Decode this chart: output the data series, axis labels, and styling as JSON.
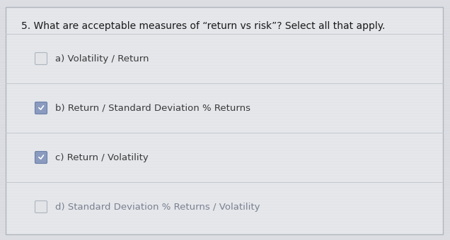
{
  "title": "5. What are acceptable measures of “return vs risk”? Select all that apply.",
  "options": [
    {
      "label": "a) Volatility / Return",
      "checked": false
    },
    {
      "label": "b) Return / Standard Deviation % Returns",
      "checked": true
    },
    {
      "label": "c) Return / Volatility",
      "checked": true
    },
    {
      "label": "d) Standard Deviation % Returns / Volatility",
      "checked": false
    }
  ],
  "bg_color": "#dcdee3",
  "card_color": "#e8eaed",
  "title_fontsize": 10.0,
  "option_fontsize": 9.5,
  "checked_box_color": "#8a9bbf",
  "unchecked_box_border": "#adb5bd",
  "unchecked_box_fill": "#e2e4e8",
  "text_color_normal": "#3a3a3a",
  "text_color_unchecked_d": "#7a8090",
  "divider_color": "#c5c8ce",
  "border_color": "#b0b5be",
  "title_color": "#1a1a1a"
}
